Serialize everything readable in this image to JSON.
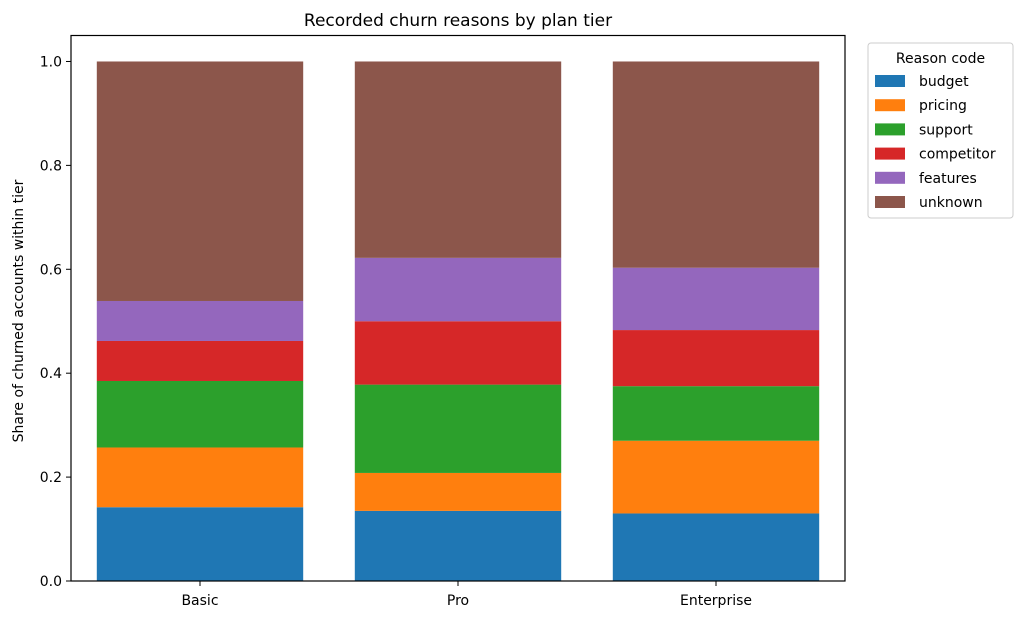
{
  "chart_data": {
    "type": "bar",
    "stacked": true,
    "title": "Recorded churn reasons by plan tier",
    "xlabel": "",
    "ylabel": "Share of churned accounts within tier",
    "ylim": [
      0,
      1.05
    ],
    "yticks": [
      "0.0",
      "0.2",
      "0.4",
      "0.6",
      "0.8",
      "1.0"
    ],
    "categories": [
      "Basic",
      "Pro",
      "Enterprise"
    ],
    "legend": {
      "title": "Reason code",
      "placement": "outside-top-right"
    },
    "series": [
      {
        "name": "budget",
        "color": "#1f77b4",
        "values": [
          0.142,
          0.135,
          0.13
        ]
      },
      {
        "name": "pricing",
        "color": "#ff7f0e",
        "values": [
          0.115,
          0.073,
          0.14
        ]
      },
      {
        "name": "support",
        "color": "#2ca02c",
        "values": [
          0.128,
          0.17,
          0.105
        ]
      },
      {
        "name": "competitor",
        "color": "#d62728",
        "values": [
          0.077,
          0.122,
          0.108
        ]
      },
      {
        "name": "features",
        "color": "#9467bd",
        "values": [
          0.077,
          0.122,
          0.12
        ]
      },
      {
        "name": "unknown",
        "color": "#8c564b",
        "values": [
          0.461,
          0.378,
          0.397
        ]
      }
    ]
  }
}
